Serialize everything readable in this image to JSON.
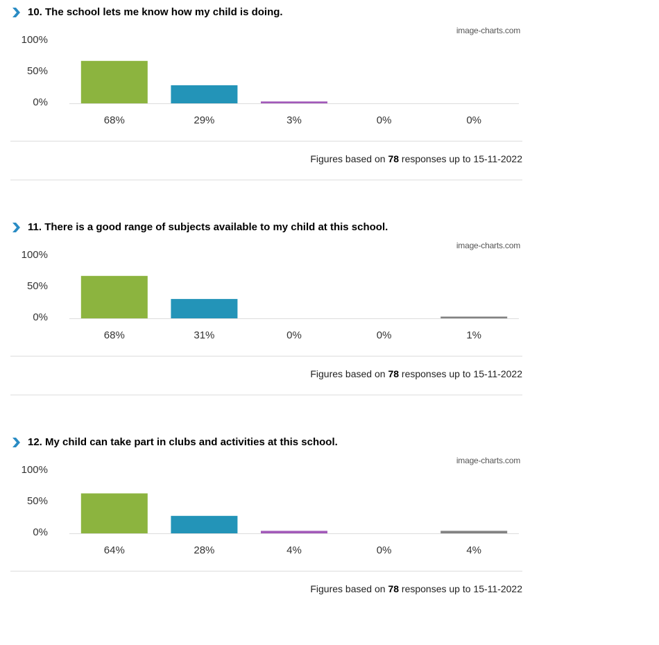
{
  "watermark": "image-charts.com",
  "footnote": {
    "prefix": "Figures based on",
    "count": "78",
    "suffix": "responses up to 15-11-2022"
  },
  "colors": [
    "#8cb43f",
    "#2394b8",
    "#a25ab9",
    "#c8c8c8",
    "#828282"
  ],
  "questions": [
    {
      "title": "10. The school lets me know how my child is doing."
    },
    {
      "title": "11. There is a good range of subjects available to my child at this school."
    },
    {
      "title": "12. My child can take part in clubs and activities at this school."
    }
  ],
  "chart_data": [
    {
      "type": "bar",
      "categories": [
        "",
        "",
        "",
        "",
        ""
      ],
      "values": [
        68,
        29,
        3,
        0,
        0
      ],
      "value_labels": [
        "68%",
        "29%",
        "3%",
        "0%",
        "0%"
      ],
      "yticks": [
        "100%",
        "50%",
        "0%"
      ],
      "ylim": [
        0,
        100
      ],
      "grid": false
    },
    {
      "type": "bar",
      "categories": [
        "",
        "",
        "",
        "",
        ""
      ],
      "values": [
        68,
        31,
        0,
        0,
        1
      ],
      "value_labels": [
        "68%",
        "31%",
        "0%",
        "0%",
        "1%"
      ],
      "yticks": [
        "100%",
        "50%",
        "0%"
      ],
      "ylim": [
        0,
        100
      ],
      "grid": false
    },
    {
      "type": "bar",
      "categories": [
        "",
        "",
        "",
        "",
        ""
      ],
      "values": [
        64,
        28,
        4,
        0,
        4
      ],
      "value_labels": [
        "64%",
        "28%",
        "4%",
        "0%",
        "4%"
      ],
      "yticks": [
        "100%",
        "50%",
        "0%"
      ],
      "ylim": [
        0,
        100
      ],
      "grid": false
    }
  ]
}
